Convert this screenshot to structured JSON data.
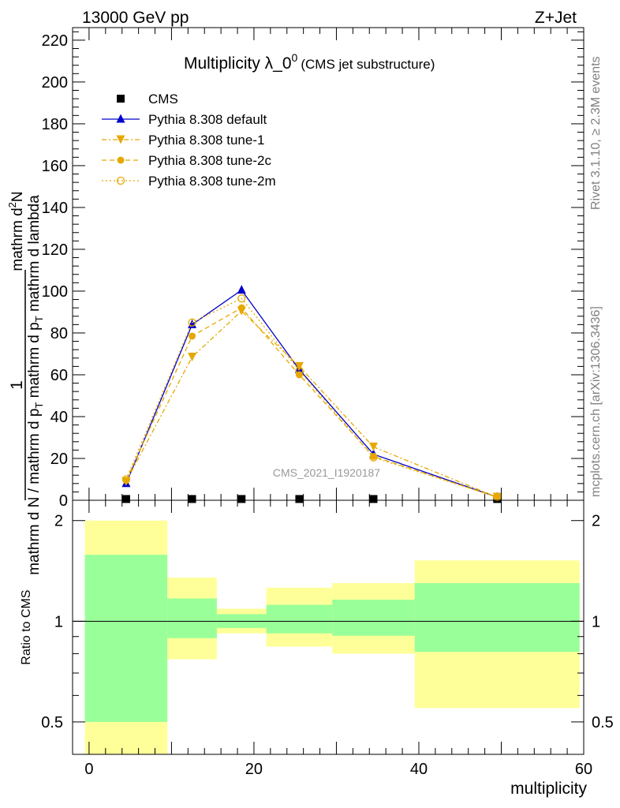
{
  "header": {
    "energy_label": "13000 GeV pp",
    "process_label": "Z+Jet",
    "side_label_top": "Rivet 3.1.10, ≥ 2.3M events",
    "side_label_bottom": "mcplots.cern.ch [arXiv:1306.3436]"
  },
  "chart_data": [
    {
      "type": "line",
      "title_main": "Multiplicity λ_0",
      "title_sup": "0",
      "title_sub": "(CMS jet substructure)",
      "watermark": "CMS_2021_I1920187",
      "ylabel_top": "1",
      "ylabel_mid": "mathrm d N / mathrm d p",
      "ylabel_mid_sub": "T",
      "ylabel_mid2": "mathrm d p",
      "ylabel_mid2_sub": "T",
      "ylabel_mid2_rest": "mathrm d lambda",
      "ylabel_num": "mathrm d",
      "ylabel_num_sup": "2",
      "ylabel_num_rest": "N",
      "xlim": [
        -2,
        60
      ],
      "ylim": [
        0,
        226
      ],
      "y_ticks": [
        0,
        20,
        40,
        60,
        80,
        100,
        120,
        140,
        160,
        180,
        200,
        220
      ],
      "y_tick_labels": [
        "0",
        "20",
        "40",
        "60",
        "80",
        "100",
        "120",
        "140",
        "160",
        "180",
        "200",
        "220"
      ],
      "legend_position": "top-left",
      "series": [
        {
          "name": "CMS",
          "color": "#000000",
          "marker": "square",
          "dash": "none",
          "x": [
            4.5,
            12.5,
            18.5,
            25.5,
            34.5,
            49.5
          ],
          "y": [
            0.6,
            0.6,
            0.6,
            0.6,
            0.6,
            0.6
          ]
        },
        {
          "name": "Pythia 8.308 default",
          "color": "#0000cc",
          "marker": "triangle-up",
          "dash": "solid",
          "x": [
            4.5,
            12.5,
            18.5,
            25.5,
            34.5,
            49.5
          ],
          "y": [
            8,
            84,
            100.5,
            62.5,
            22,
            1.5
          ]
        },
        {
          "name": "Pythia 8.308 tune-1",
          "color": "#e6a800",
          "marker": "triangle-down",
          "dash": "dashdot",
          "x": [
            4.5,
            12.5,
            18.5,
            25.5,
            34.5,
            49.5
          ],
          "y": [
            9,
            68.5,
            90.5,
            64,
            25.5,
            1.5
          ]
        },
        {
          "name": "Pythia 8.308 tune-2c",
          "color": "#e6a800",
          "marker": "circle",
          "dash": "dashed",
          "x": [
            4.5,
            12.5,
            18.5,
            25.5,
            34.5,
            49.5
          ],
          "y": [
            9.5,
            78.5,
            92,
            60,
            21,
            1.5
          ]
        },
        {
          "name": "Pythia 8.308 tune-2m",
          "color": "#e6a800",
          "marker": "circle-open",
          "dash": "dotted",
          "x": [
            4.5,
            12.5,
            18.5,
            25.5,
            34.5,
            49.5
          ],
          "y": [
            10,
            85,
            96.5,
            62,
            20.5,
            1.5
          ]
        }
      ]
    },
    {
      "type": "area",
      "ylabel": "Ratio to CMS",
      "xlabel": "multiplicity",
      "xlim": [
        -2,
        60
      ],
      "ylim": [
        0.4,
        2.3
      ],
      "log_y": true,
      "x_ticks": [
        0,
        20,
        40,
        60
      ],
      "x_tick_labels": [
        "0",
        "20",
        "40",
        "60"
      ],
      "y_ticks": [
        0.5,
        1,
        2
      ],
      "y_tick_labels": [
        "0.5",
        "1",
        "2"
      ],
      "reference_line": 1,
      "bands": [
        {
          "x_low": -0.5,
          "x_high": 9.5,
          "yellow_low": 0.4,
          "yellow_high": 2.0,
          "green_low": 0.5,
          "green_high": 1.58
        },
        {
          "x_low": 9.5,
          "x_high": 15.5,
          "yellow_low": 0.77,
          "yellow_high": 1.35,
          "green_low": 0.89,
          "green_high": 1.17
        },
        {
          "x_low": 15.5,
          "x_high": 21.5,
          "yellow_low": 0.92,
          "yellow_high": 1.09,
          "green_low": 0.955,
          "green_high": 1.05
        },
        {
          "x_low": 21.5,
          "x_high": 29.5,
          "yellow_low": 0.84,
          "yellow_high": 1.26,
          "green_low": 0.92,
          "green_high": 1.12
        },
        {
          "x_low": 29.5,
          "x_high": 39.5,
          "yellow_low": 0.8,
          "yellow_high": 1.3,
          "green_low": 0.905,
          "green_high": 1.16
        },
        {
          "x_low": 39.5,
          "x_high": 59.5,
          "yellow_low": 0.55,
          "yellow_high": 1.52,
          "green_low": 0.81,
          "green_high": 1.3
        }
      ],
      "colors": {
        "yellow": "#ffff99",
        "green": "#99ff99"
      }
    }
  ]
}
